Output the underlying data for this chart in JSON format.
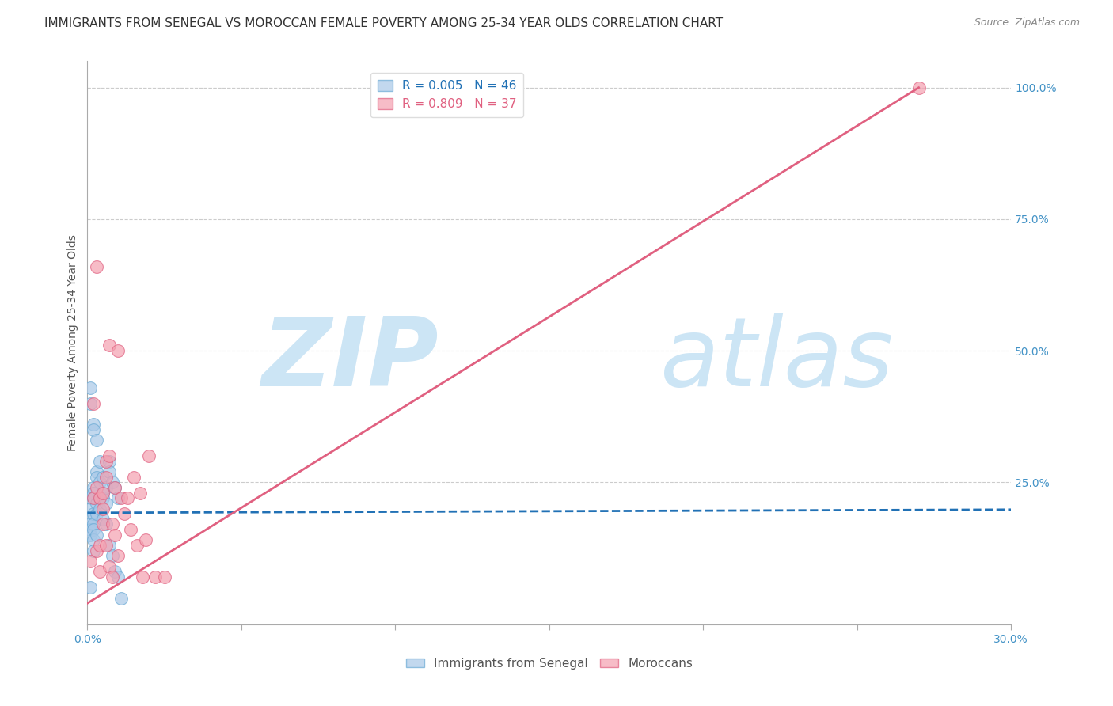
{
  "title": "IMMIGRANTS FROM SENEGAL VS MOROCCAN FEMALE POVERTY AMONG 25-34 YEAR OLDS CORRELATION CHART",
  "source": "Source: ZipAtlas.com",
  "ylabel": "Female Poverty Among 25-34 Year Olds",
  "xlim": [
    0.0,
    0.3
  ],
  "ylim": [
    -0.02,
    1.05
  ],
  "xticks": [
    0.0,
    0.05,
    0.1,
    0.15,
    0.2,
    0.25,
    0.3
  ],
  "xticklabels": [
    "0.0%",
    "",
    "",
    "",
    "",
    "",
    "30.0%"
  ],
  "yticks_right": [
    0.25,
    0.5,
    0.75,
    1.0
  ],
  "ytick_right_labels": [
    "25.0%",
    "50.0%",
    "75.0%",
    "100.0%"
  ],
  "series1_label": "Immigrants from Senegal",
  "series1_R": "0.005",
  "series1_N": "46",
  "series1_color": "#a8c8e8",
  "series1_edge": "#6aaad4",
  "series2_label": "Moroccans",
  "series2_R": "0.809",
  "series2_N": "37",
  "series2_color": "#f4a0b0",
  "series2_edge": "#e06080",
  "background_color": "#ffffff",
  "grid_color": "#cccccc",
  "watermark_zip": "ZIP",
  "watermark_atlas": "atlas",
  "watermark_color": "#cce5f5",
  "title_fontsize": 11,
  "axis_label_fontsize": 10,
  "tick_fontsize": 10,
  "legend_fontsize": 11,
  "series1_x": [
    0.001,
    0.001,
    0.001,
    0.001,
    0.001,
    0.001,
    0.001,
    0.001,
    0.001,
    0.002,
    0.002,
    0.002,
    0.002,
    0.002,
    0.002,
    0.002,
    0.002,
    0.002,
    0.002,
    0.003,
    0.003,
    0.003,
    0.003,
    0.003,
    0.003,
    0.004,
    0.004,
    0.004,
    0.004,
    0.005,
    0.005,
    0.005,
    0.005,
    0.006,
    0.006,
    0.006,
    0.007,
    0.007,
    0.007,
    0.008,
    0.008,
    0.009,
    0.009,
    0.01,
    0.01,
    0.011
  ],
  "series1_y": [
    0.43,
    0.4,
    0.22,
    0.2,
    0.18,
    0.17,
    0.16,
    0.15,
    0.05,
    0.36,
    0.35,
    0.24,
    0.23,
    0.22,
    0.19,
    0.17,
    0.16,
    0.14,
    0.12,
    0.33,
    0.27,
    0.26,
    0.21,
    0.19,
    0.15,
    0.29,
    0.25,
    0.22,
    0.2,
    0.26,
    0.23,
    0.22,
    0.18,
    0.24,
    0.21,
    0.17,
    0.29,
    0.27,
    0.13,
    0.25,
    0.11,
    0.24,
    0.08,
    0.22,
    0.07,
    0.03
  ],
  "series2_x": [
    0.001,
    0.002,
    0.002,
    0.003,
    0.003,
    0.003,
    0.004,
    0.004,
    0.004,
    0.005,
    0.005,
    0.005,
    0.006,
    0.006,
    0.006,
    0.007,
    0.007,
    0.007,
    0.008,
    0.008,
    0.009,
    0.009,
    0.01,
    0.01,
    0.011,
    0.012,
    0.013,
    0.014,
    0.015,
    0.016,
    0.017,
    0.018,
    0.019,
    0.02,
    0.022,
    0.025,
    0.27
  ],
  "series2_y": [
    0.1,
    0.4,
    0.22,
    0.66,
    0.24,
    0.12,
    0.22,
    0.13,
    0.08,
    0.23,
    0.2,
    0.17,
    0.29,
    0.26,
    0.13,
    0.51,
    0.3,
    0.09,
    0.17,
    0.07,
    0.24,
    0.15,
    0.5,
    0.11,
    0.22,
    0.19,
    0.22,
    0.16,
    0.26,
    0.13,
    0.23,
    0.07,
    0.14,
    0.3,
    0.07,
    0.07,
    1.0
  ],
  "trendline1_x0": 0.0,
  "trendline1_x1": 0.3,
  "trendline1_y0": 0.192,
  "trendline1_y1": 0.198,
  "trendline1_color": "#2171b5",
  "trendline2_x0": 0.0,
  "trendline2_x1": 0.27,
  "trendline2_y0": 0.02,
  "trendline2_y1": 1.0,
  "trendline2_color": "#e06080"
}
